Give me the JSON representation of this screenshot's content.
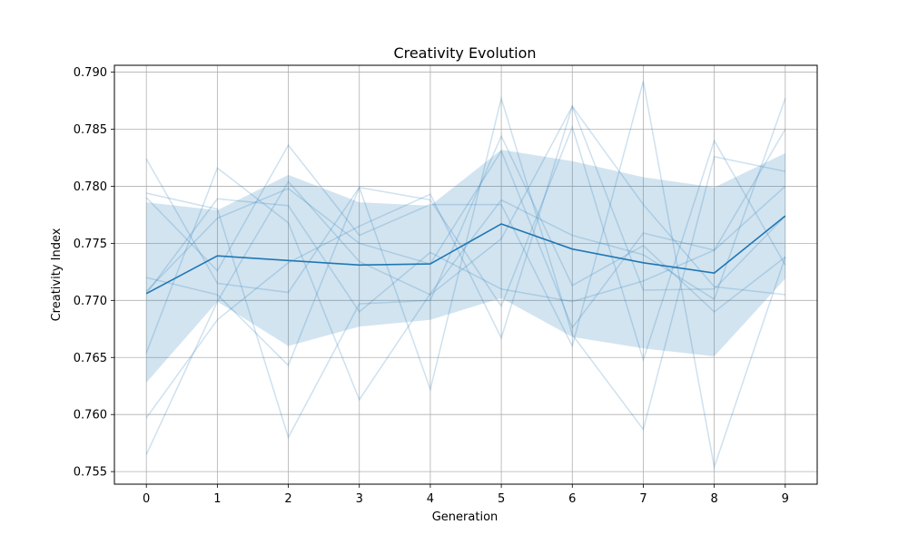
{
  "chart_data": {
    "type": "line",
    "title": "Creativity Evolution",
    "xlabel": "Generation",
    "ylabel": "Creativity Index",
    "x": [
      0,
      1,
      2,
      3,
      4,
      5,
      6,
      7,
      8,
      9
    ],
    "xlim": [
      -0.45,
      9.45
    ],
    "ylim": [
      0.7539,
      0.7906
    ],
    "yticks": [
      0.755,
      0.76,
      0.765,
      0.77,
      0.775,
      0.78,
      0.785,
      0.79
    ],
    "ytick_labels": [
      "0.755",
      "0.760",
      "0.765",
      "0.770",
      "0.775",
      "0.780",
      "0.785",
      "0.790"
    ],
    "xticks": [
      0,
      1,
      2,
      3,
      4,
      5,
      6,
      7,
      8,
      9
    ],
    "xtick_labels": [
      "0",
      "1",
      "2",
      "3",
      "4",
      "5",
      "6",
      "7",
      "8",
      "9"
    ],
    "grid": true,
    "color": "#1f77b4",
    "mean": [
      0.7706,
      0.7739,
      0.7735,
      0.7731,
      0.7732,
      0.7767,
      0.7745,
      0.7733,
      0.7724,
      0.7774
    ],
    "band_upper": [
      0.7786,
      0.7779,
      0.781,
      0.7786,
      0.7783,
      0.7832,
      0.7822,
      0.7808,
      0.7799,
      0.7829
    ],
    "band_lower": [
      0.7628,
      0.7699,
      0.766,
      0.7677,
      0.7683,
      0.7702,
      0.7668,
      0.7658,
      0.7651,
      0.7719
    ],
    "runs": [
      [
        0.7824,
        0.7715,
        0.7707,
        0.7799,
        0.7788,
        0.7695,
        0.7852,
        0.7648,
        0.784,
        0.7731
      ],
      [
        0.7794,
        0.778,
        0.758,
        0.7697,
        0.77,
        0.7844,
        0.7713,
        0.7748,
        0.769,
        0.7738
      ],
      [
        0.779,
        0.7726,
        0.7836,
        0.7757,
        0.7784,
        0.7784,
        0.766,
        0.7892,
        0.7554,
        0.7738
      ],
      [
        0.7706,
        0.7789,
        0.7783,
        0.769,
        0.7742,
        0.771,
        0.7699,
        0.7717,
        0.7744,
        0.785
      ],
      [
        0.772,
        0.7705,
        0.7643,
        0.7799,
        0.7622,
        0.7877,
        0.767,
        0.7587,
        0.7826,
        0.7813
      ],
      [
        0.7654,
        0.7816,
        0.7768,
        0.7613,
        0.7706,
        0.7788,
        0.7757,
        0.774,
        0.7701,
        0.7877
      ],
      [
        0.7565,
        0.7699,
        0.7804,
        0.7734,
        0.7705,
        0.7754,
        0.787,
        0.7784,
        0.7712,
        0.7705
      ],
      [
        0.7597,
        0.7683,
        0.7733,
        0.7765,
        0.7793,
        0.7667,
        0.787,
        0.7709,
        0.771,
        0.7774
      ],
      [
        0.7708,
        0.7772,
        0.7798,
        0.775,
        0.7732,
        0.7831,
        0.7676,
        0.7759,
        0.7744,
        0.78
      ]
    ]
  }
}
